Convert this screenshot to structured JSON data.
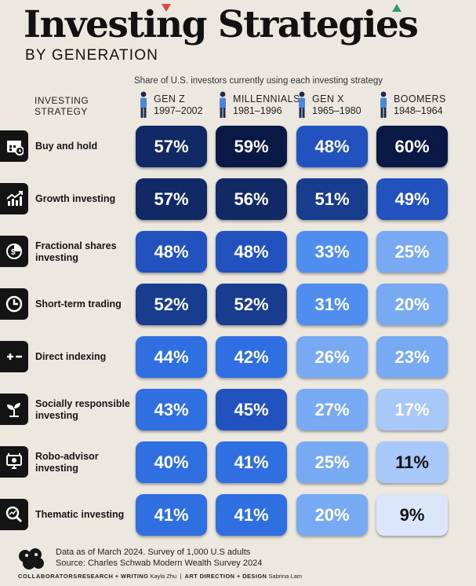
{
  "header": {
    "title": "Investing Strategies",
    "subtitle": "BY GENERATION",
    "caption": "Share of U.S. investors currently using each investing strategy",
    "strategy_heading": [
      "INVESTING",
      "STRATEGY"
    ]
  },
  "chart_data": {
    "type": "table",
    "title": "Investing Strategies",
    "subtitle": "BY GENERATION",
    "columns": [
      {
        "name": "GEN Z",
        "years": "1997–2002"
      },
      {
        "name": "MILLENNIALS",
        "years": "1981–1996"
      },
      {
        "name": "GEN X",
        "years": "1965–1980"
      },
      {
        "name": "BOOMERS",
        "years": "1948–1964"
      }
    ],
    "rows": [
      {
        "label": [
          "Buy and hold"
        ],
        "icon": "calendar-icon",
        "values": [
          57,
          59,
          48,
          60
        ]
      },
      {
        "label": [
          "Growth investing"
        ],
        "icon": "growth-chart-icon",
        "values": [
          57,
          56,
          51,
          49
        ]
      },
      {
        "label": [
          "Fractional shares",
          "investing"
        ],
        "icon": "coin-pie-icon",
        "values": [
          48,
          48,
          33,
          25
        ]
      },
      {
        "label": [
          "Short-term trading"
        ],
        "icon": "clock-icon",
        "values": [
          52,
          52,
          31,
          20
        ]
      },
      {
        "label": [
          "Direct indexing"
        ],
        "icon": "plus-minus-icon",
        "values": [
          44,
          42,
          26,
          23
        ]
      },
      {
        "label": [
          "Socially responsible",
          "investing"
        ],
        "icon": "sprout-icon",
        "values": [
          43,
          45,
          27,
          17
        ]
      },
      {
        "label": [
          "Robo-advisor",
          "investing"
        ],
        "icon": "robo-monitor-icon",
        "values": [
          40,
          41,
          25,
          11
        ]
      },
      {
        "label": [
          "Thematic investing"
        ],
        "icon": "magnifier-chart-icon",
        "values": [
          41,
          41,
          20,
          9
        ]
      }
    ],
    "unit": "%"
  },
  "colors": {
    "background": "#ece8df",
    "scale": [
      "#dbe6fb",
      "#a7c8f9",
      "#78aaf4",
      "#4f8eef",
      "#2f6fe1",
      "#2152be",
      "#183c8e",
      "#112a66",
      "#0a1845"
    ]
  },
  "footer": {
    "note_line1": "Data as of March 2024. Survey of 1,000 U.S adults",
    "note_line2": "Source: Charles Schwab Modern Wealth Survey 2024",
    "brand": "COLLABORATORS",
    "research_label": "RESEARCH + WRITING",
    "research_name": "Kayla Zhu",
    "art_label": "ART DIRECTION + DESIGN",
    "art_name": "Sabrina Lam"
  }
}
